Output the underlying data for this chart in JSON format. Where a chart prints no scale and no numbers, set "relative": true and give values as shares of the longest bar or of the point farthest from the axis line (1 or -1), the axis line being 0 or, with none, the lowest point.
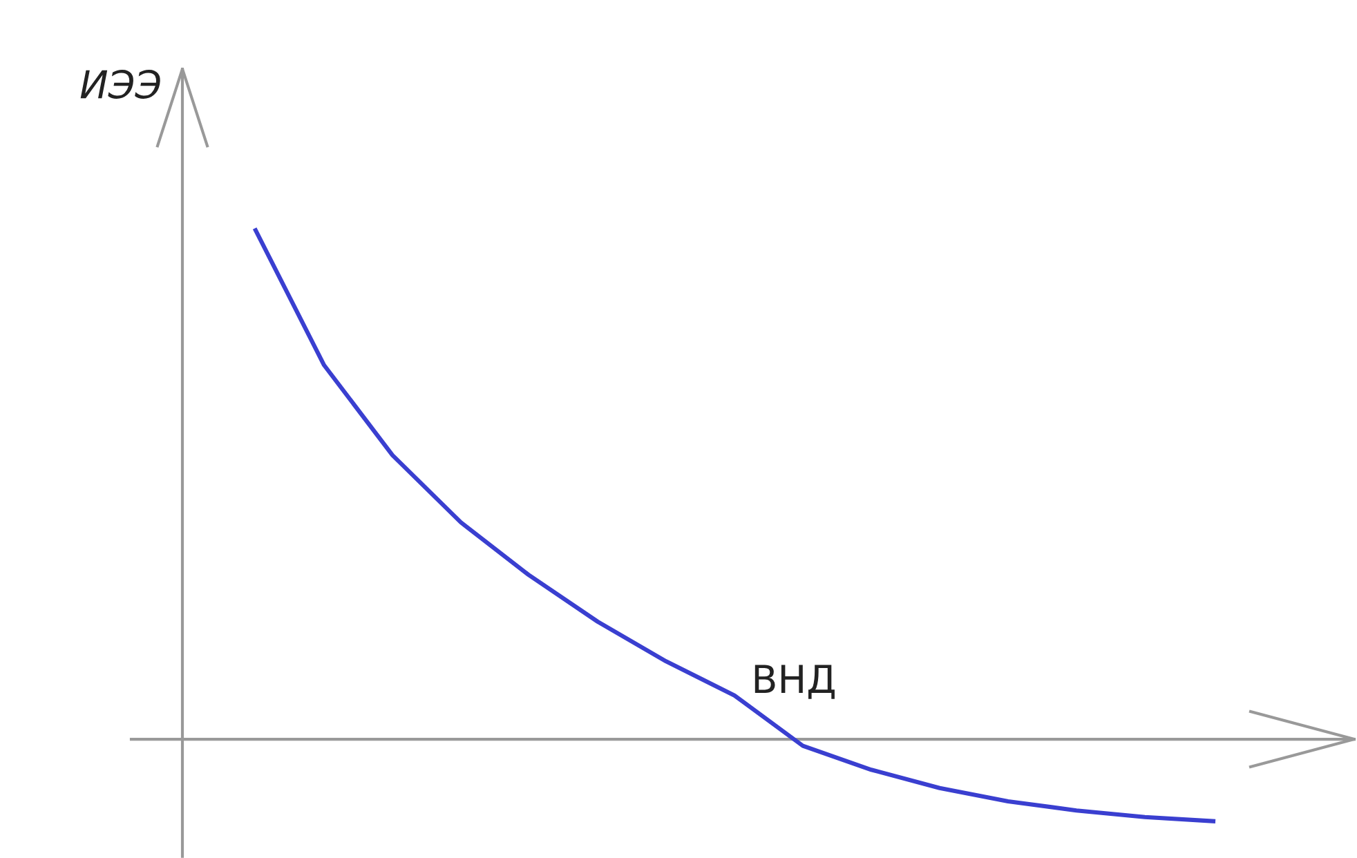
{
  "chart_data": {
    "type": "line",
    "relative": true,
    "ylabel": "ИЭЭ",
    "categories": [
      null,
      null,
      null,
      null,
      null,
      null,
      null,
      null,
      null,
      null,
      null,
      null,
      null,
      null,
      null
    ],
    "series": [
      {
        "color": "#3a3fd0",
        "values": [
          1,
          0.735,
          0.558,
          0.426,
          0.322,
          0.231,
          0.153,
          0.086,
          -0.013,
          -0.06,
          -0.096,
          -0.122,
          -0.14,
          -0.153,
          -0.161
        ]
      }
    ],
    "annotations": [
      "ВНД"
    ],
    "grid": false,
    "legend": false,
    "marker": "none",
    "line_style": "solid"
  }
}
